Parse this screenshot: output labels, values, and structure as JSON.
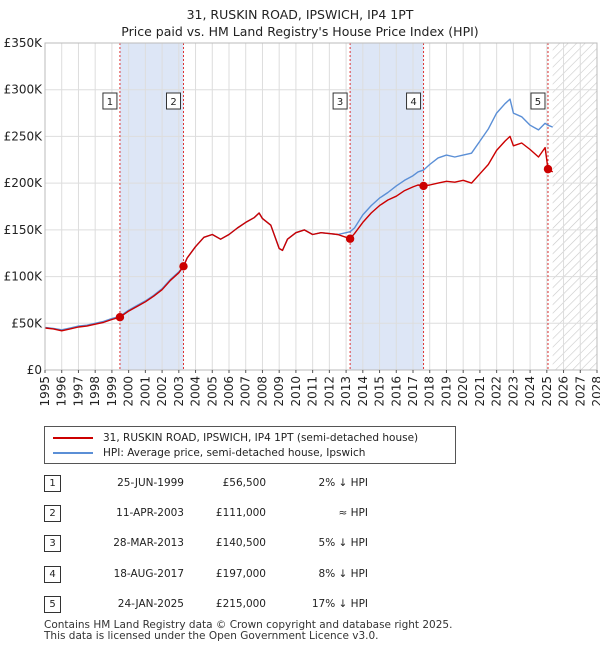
{
  "header": {
    "title_line1": "31, RUSKIN ROAD, IPSWICH, IP4 1PT",
    "title_line2": "Price paid vs. HM Land Registry's House Price Index (HPI)"
  },
  "colors": {
    "price_line": "#cc0000",
    "hpi_line": "#5b8fd6",
    "band": "#dde6f6",
    "sale_marker": "#cc0000",
    "vline": "#dd3333"
  },
  "chart_data": {
    "type": "line",
    "title": "31, RUSKIN ROAD, IPSWICH, IP4 1PT",
    "subtitle": "Price paid vs. HM Land Registry's House Price Index (HPI)",
    "xlabel": "",
    "ylabel": "",
    "xlim": [
      1995,
      2028
    ],
    "ylim": [
      0,
      350000
    ],
    "x_ticks": [
      "1995",
      "1996",
      "1997",
      "1998",
      "1999",
      "2000",
      "2001",
      "2002",
      "2003",
      "2004",
      "2005",
      "2006",
      "2007",
      "2008",
      "2009",
      "2010",
      "2011",
      "2012",
      "2013",
      "2014",
      "2015",
      "2016",
      "2017",
      "2018",
      "2019",
      "2020",
      "2021",
      "2022",
      "2023",
      "2024",
      "2025",
      "2026",
      "2027",
      "2028"
    ],
    "y_ticks": [
      {
        "value": 0,
        "label": "£0"
      },
      {
        "value": 50000,
        "label": "£50K"
      },
      {
        "value": 100000,
        "label": "£100K"
      },
      {
        "value": 150000,
        "label": "£150K"
      },
      {
        "value": 200000,
        "label": "£200K"
      },
      {
        "value": 250000,
        "label": "£250K"
      },
      {
        "value": 300000,
        "label": "£300K"
      },
      {
        "value": 350000,
        "label": "£350K"
      }
    ],
    "grid": true,
    "shaded_bands": [
      [
        1999.48,
        2003.28
      ],
      [
        2013.24,
        2017.63
      ]
    ],
    "future_hatch_from": 2025.35,
    "series": [
      {
        "name": "31, RUSKIN ROAD, IPSWICH, IP4 1PT (semi-detached house)",
        "x": [
          1995.0,
          1995.5,
          1996.0,
          1996.5,
          1997.0,
          1997.5,
          1998.0,
          1998.5,
          1999.0,
          1999.48,
          2000.0,
          2000.5,
          2001.0,
          2001.5,
          2002.0,
          2002.5,
          2003.0,
          2003.28,
          2003.5,
          2004.0,
          2004.5,
          2005.0,
          2005.5,
          2006.0,
          2006.5,
          2007.0,
          2007.5,
          2007.8,
          2008.0,
          2008.5,
          2009.0,
          2009.2,
          2009.5,
          2010.0,
          2010.5,
          2011.0,
          2011.5,
          2012.0,
          2012.5,
          2013.0,
          2013.24,
          2013.5,
          2014.0,
          2014.5,
          2015.0,
          2015.5,
          2016.0,
          2016.5,
          2017.0,
          2017.3,
          2017.63,
          2018.0,
          2018.5,
          2019.0,
          2019.5,
          2020.0,
          2020.5,
          2021.0,
          2021.5,
          2022.0,
          2022.5,
          2022.8,
          2023.0,
          2023.5,
          2024.0,
          2024.5,
          2024.9,
          2025.07,
          2025.35
        ],
        "values": [
          45000,
          44000,
          42000,
          44000,
          46000,
          47000,
          49000,
          51000,
          54000,
          56500,
          63000,
          68000,
          73000,
          79000,
          86000,
          96000,
          104000,
          111000,
          120000,
          132000,
          142000,
          145000,
          140000,
          145000,
          152000,
          158000,
          163000,
          168000,
          162000,
          155000,
          130000,
          128000,
          140000,
          147000,
          150000,
          145000,
          147000,
          146000,
          145000,
          142000,
          140500,
          146000,
          158000,
          168000,
          176000,
          182000,
          186000,
          192000,
          196000,
          198000,
          197000,
          198000,
          200000,
          202000,
          201000,
          203000,
          200000,
          210000,
          220000,
          235000,
          245000,
          250000,
          240000,
          243000,
          236000,
          228000,
          238000,
          215000,
          212000
        ]
      },
      {
        "name": "HPI: Average price, semi-detached house, Ipswich",
        "x": [
          1995.0,
          1995.5,
          1996.0,
          1996.5,
          1997.0,
          1997.5,
          1998.0,
          1998.5,
          1999.0,
          1999.48,
          2000.0,
          2000.5,
          2001.0,
          2001.5,
          2002.0,
          2002.5,
          2003.0,
          2003.28,
          2003.5,
          2004.0,
          2004.5,
          2005.0,
          2005.5,
          2006.0,
          2006.5,
          2007.0,
          2007.5,
          2007.8,
          2008.0,
          2008.5,
          2009.0,
          2009.2,
          2009.5,
          2010.0,
          2010.5,
          2011.0,
          2011.5,
          2012.0,
          2012.5,
          2013.0,
          2013.24,
          2013.5,
          2014.0,
          2014.5,
          2015.0,
          2015.5,
          2016.0,
          2016.5,
          2017.0,
          2017.3,
          2017.63,
          2018.0,
          2018.5,
          2019.0,
          2019.5,
          2020.0,
          2020.5,
          2021.0,
          2021.5,
          2022.0,
          2022.5,
          2022.8,
          2023.0,
          2023.5,
          2024.0,
          2024.5,
          2024.9,
          2025.07,
          2025.35
        ],
        "values": [
          45500,
          44500,
          43000,
          45000,
          47000,
          48000,
          50000,
          52000,
          55000,
          57500,
          64000,
          69000,
          74000,
          80000,
          87000,
          97000,
          105000,
          111000,
          120000,
          132000,
          142000,
          145000,
          140000,
          145000,
          152000,
          158000,
          163000,
          168000,
          162000,
          155000,
          130000,
          128000,
          140000,
          147000,
          150000,
          145000,
          147000,
          146000,
          145000,
          147000,
          148000,
          152000,
          166000,
          176000,
          184000,
          190000,
          197000,
          203000,
          208000,
          212000,
          214000,
          220000,
          227000,
          230000,
          228000,
          230000,
          232000,
          245000,
          258000,
          275000,
          285000,
          290000,
          275000,
          271000,
          262000,
          257000,
          264000,
          262000,
          260000
        ]
      }
    ],
    "sales": [
      {
        "n": "1",
        "x": 1999.48,
        "value": 56500
      },
      {
        "n": "2",
        "x": 2003.28,
        "value": 111000
      },
      {
        "n": "3",
        "x": 2013.24,
        "value": 140500
      },
      {
        "n": "4",
        "x": 2017.63,
        "value": 197000
      },
      {
        "n": "5",
        "x": 2025.07,
        "value": 215000
      }
    ]
  },
  "legend": {
    "items": [
      {
        "label": "31, RUSKIN ROAD, IPSWICH, IP4 1PT (semi-detached house)"
      },
      {
        "label": "HPI: Average price, semi-detached house, Ipswich"
      }
    ]
  },
  "sales_table": {
    "rows": [
      {
        "n": "1",
        "date": "25-JUN-1999",
        "price": "£56,500",
        "delta": "2% ↓ HPI"
      },
      {
        "n": "2",
        "date": "11-APR-2003",
        "price": "£111,000",
        "delta": "≈ HPI"
      },
      {
        "n": "3",
        "date": "28-MAR-2013",
        "price": "£140,500",
        "delta": "5% ↓ HPI"
      },
      {
        "n": "4",
        "date": "18-AUG-2017",
        "price": "£197,000",
        "delta": "8% ↓ HPI"
      },
      {
        "n": "5",
        "date": "24-JAN-2025",
        "price": "£215,000",
        "delta": "17% ↓ HPI"
      }
    ]
  },
  "footer": {
    "line1": "Contains HM Land Registry data © Crown copyright and database right 2025.",
    "line2": "This data is licensed under the Open Government Licence v3.0."
  }
}
